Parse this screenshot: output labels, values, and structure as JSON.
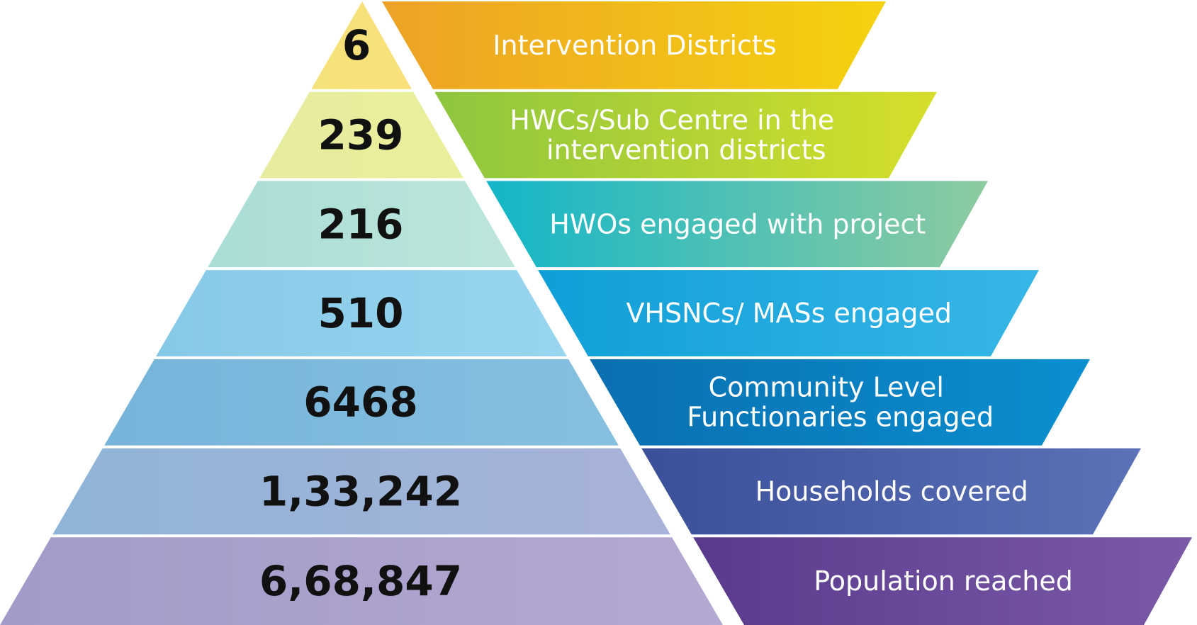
{
  "levels": [
    {
      "value": "6",
      "label_lines": [
        "Intervention Districts"
      ],
      "left_color": [
        "#f6e27a",
        "#f9e07a"
      ],
      "band_color": [
        "#eda226",
        "#f5d20f"
      ]
    },
    {
      "value": "239",
      "label_lines": [
        "HWCs/Sub Centre in the",
        "intervention districts"
      ],
      "left_color": [
        "#e7ec9f",
        "#e9ef9a"
      ],
      "band_color": [
        "#8ec63f",
        "#d6df2a"
      ]
    },
    {
      "value": "216",
      "label_lines": [
        "HWOs engaged with project"
      ],
      "left_color": [
        "#a9ddd6",
        "#bde6dc"
      ],
      "band_color": [
        "#13b6c8",
        "#8ecba0"
      ]
    },
    {
      "value": "510",
      "label_lines": [
        "VHSNCs/ MASs engaged"
      ],
      "left_color": [
        "#86c9e7",
        "#98d5ef"
      ],
      "band_color": [
        "#0f9fd8",
        "#37b6e6"
      ]
    },
    {
      "value": "6468",
      "label_lines": [
        "Community Level",
        "Functionaries engaged"
      ],
      "left_color": [
        "#77b4da",
        "#86c0e0"
      ],
      "band_color": [
        "#0a6fb0",
        "#0a8fd0"
      ]
    },
    {
      "value": "1,33,242",
      "label_lines": [
        "Households covered"
      ],
      "left_color": [
        "#8fb4d8",
        "#a9b2d8"
      ],
      "band_color": [
        "#3b4f9a",
        "#5b72b8"
      ]
    },
    {
      "value": "6,68,847",
      "label_lines": [
        "Population reached"
      ],
      "left_color": [
        "#a39ac8",
        "#b4a9d2"
      ],
      "band_color": [
        "#5a3a8c",
        "#7a5aa8"
      ]
    }
  ]
}
